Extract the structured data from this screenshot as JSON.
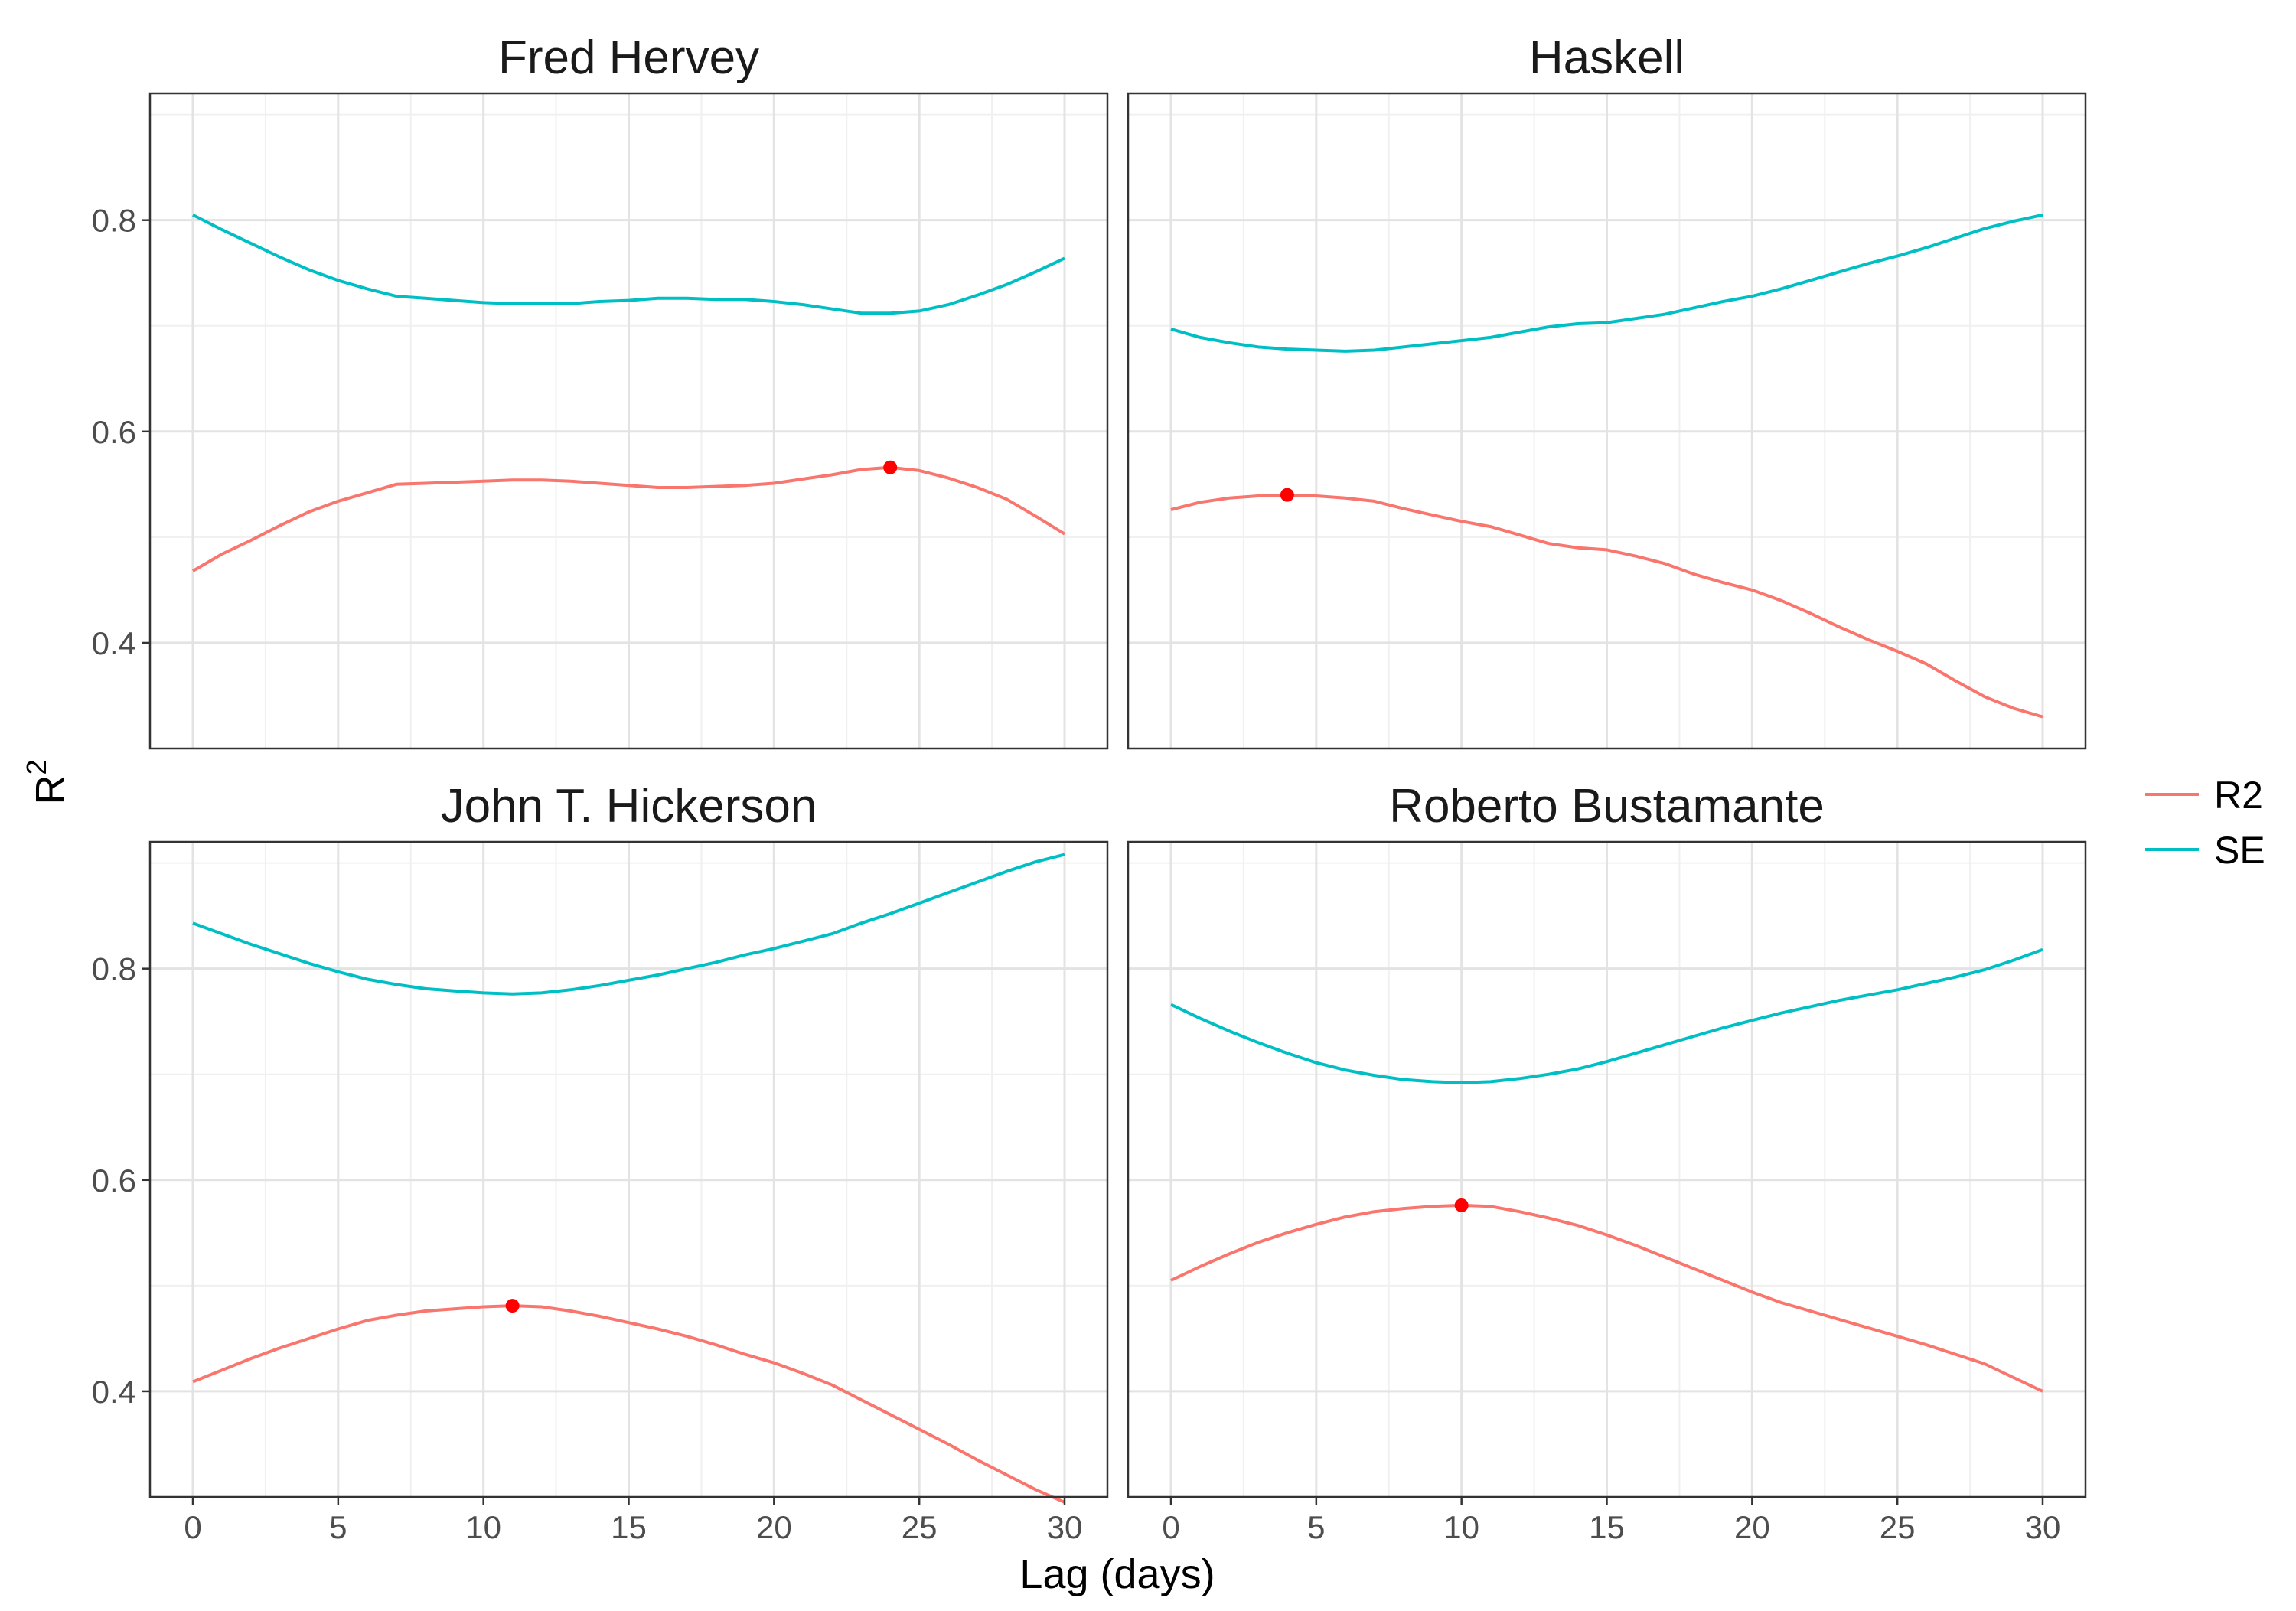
{
  "chart_data": {
    "type": "line",
    "xlabel": "Lag (days)",
    "ylabel": "R",
    "ylabel_superscript": "2",
    "xlim": [
      0,
      30
    ],
    "ylim": [
      0.3,
      0.92
    ],
    "x_ticks": [
      0,
      5,
      10,
      15,
      20,
      25,
      30
    ],
    "x_tick_labels": [
      "0",
      "5",
      "10",
      "15",
      "20",
      "25",
      "30"
    ],
    "y_ticks": [
      0.4,
      0.6,
      0.8
    ],
    "y_tick_labels": [
      "0.4",
      "0.6",
      "0.8"
    ],
    "grid": true,
    "legend": {
      "placement": "right",
      "entries": [
        {
          "name": "R2",
          "color": "#F8766D"
        },
        {
          "name": "SE",
          "color": "#00BFC4"
        }
      ]
    },
    "highlight_color": "#FF0000",
    "x": [
      0,
      1,
      2,
      3,
      4,
      5,
      6,
      7,
      8,
      9,
      10,
      11,
      12,
      13,
      14,
      15,
      16,
      17,
      18,
      19,
      20,
      21,
      22,
      23,
      24,
      25,
      26,
      27,
      28,
      29,
      30
    ],
    "panels": [
      {
        "title": "Fred Hervey",
        "series": [
          {
            "name": "R2",
            "values": [
              0.468,
              0.484,
              0.497,
              0.511,
              0.524,
              0.534,
              0.542,
              0.55,
              0.551,
              0.552,
              0.553,
              0.554,
              0.554,
              0.553,
              0.551,
              0.549,
              0.547,
              0.547,
              0.548,
              0.549,
              0.551,
              0.555,
              0.559,
              0.564,
              0.566,
              0.563,
              0.556,
              0.547,
              0.536,
              0.52,
              0.503
            ]
          },
          {
            "name": "SE",
            "values": [
              0.805,
              0.791,
              0.778,
              0.765,
              0.753,
              0.743,
              0.735,
              0.728,
              0.726,
              0.724,
              0.722,
              0.721,
              0.721,
              0.721,
              0.723,
              0.724,
              0.726,
              0.726,
              0.725,
              0.725,
              0.723,
              0.72,
              0.716,
              0.712,
              0.712,
              0.714,
              0.72,
              0.729,
              0.739,
              0.751,
              0.764
            ]
          }
        ],
        "highlight": {
          "x": 24,
          "y": 0.566
        }
      },
      {
        "title": "Haskell",
        "series": [
          {
            "name": "R2",
            "values": [
              0.526,
              0.533,
              0.537,
              0.539,
              0.54,
              0.539,
              0.537,
              0.534,
              0.527,
              0.521,
              0.515,
              0.51,
              0.502,
              0.494,
              0.49,
              0.488,
              0.482,
              0.475,
              0.465,
              0.457,
              0.45,
              0.44,
              0.428,
              0.415,
              0.403,
              0.392,
              0.38,
              0.364,
              0.349,
              0.338,
              0.33
            ]
          },
          {
            "name": "SE",
            "values": [
              0.697,
              0.689,
              0.684,
              0.68,
              0.678,
              0.677,
              0.676,
              0.677,
              0.68,
              0.683,
              0.686,
              0.689,
              0.694,
              0.699,
              0.702,
              0.703,
              0.707,
              0.711,
              0.717,
              0.723,
              0.728,
              0.735,
              0.743,
              0.751,
              0.759,
              0.766,
              0.774,
              0.783,
              0.792,
              0.799,
              0.805
            ]
          }
        ],
        "highlight": {
          "x": 4,
          "y": 0.54
        }
      },
      {
        "title": "John T. Hickerson",
        "series": [
          {
            "name": "R2",
            "values": [
              0.409,
              0.42,
              0.431,
              0.441,
              0.45,
              0.459,
              0.467,
              0.472,
              0.476,
              0.478,
              0.48,
              0.481,
              0.48,
              0.476,
              0.471,
              0.465,
              0.459,
              0.452,
              0.444,
              0.435,
              0.427,
              0.417,
              0.406,
              0.392,
              0.378,
              0.364,
              0.35,
              0.335,
              0.321,
              0.307,
              0.295
            ]
          },
          {
            "name": "SE",
            "values": [
              0.843,
              0.833,
              0.823,
              0.814,
              0.805,
              0.797,
              0.79,
              0.785,
              0.781,
              0.779,
              0.777,
              0.776,
              0.777,
              0.78,
              0.784,
              0.789,
              0.794,
              0.8,
              0.806,
              0.813,
              0.819,
              0.826,
              0.833,
              0.843,
              0.852,
              0.862,
              0.872,
              0.882,
              0.892,
              0.901,
              0.908
            ]
          }
        ],
        "highlight": {
          "x": 11,
          "y": 0.481
        }
      },
      {
        "title": "Roberto Bustamante",
        "series": [
          {
            "name": "R2",
            "values": [
              0.505,
              0.518,
              0.53,
              0.541,
              0.55,
              0.558,
              0.565,
              0.57,
              0.573,
              0.575,
              0.576,
              0.575,
              0.57,
              0.564,
              0.557,
              0.548,
              0.538,
              0.527,
              0.516,
              0.505,
              0.494,
              0.484,
              0.476,
              0.468,
              0.46,
              0.452,
              0.444,
              0.435,
              0.426,
              0.413,
              0.4
            ]
          },
          {
            "name": "SE",
            "values": [
              0.766,
              0.753,
              0.741,
              0.73,
              0.72,
              0.711,
              0.704,
              0.699,
              0.695,
              0.693,
              0.692,
              0.693,
              0.696,
              0.7,
              0.705,
              0.712,
              0.72,
              0.728,
              0.736,
              0.744,
              0.751,
              0.758,
              0.764,
              0.77,
              0.775,
              0.78,
              0.786,
              0.792,
              0.799,
              0.808,
              0.818
            ]
          }
        ],
        "highlight": {
          "x": 10,
          "y": 0.576
        }
      }
    ]
  }
}
